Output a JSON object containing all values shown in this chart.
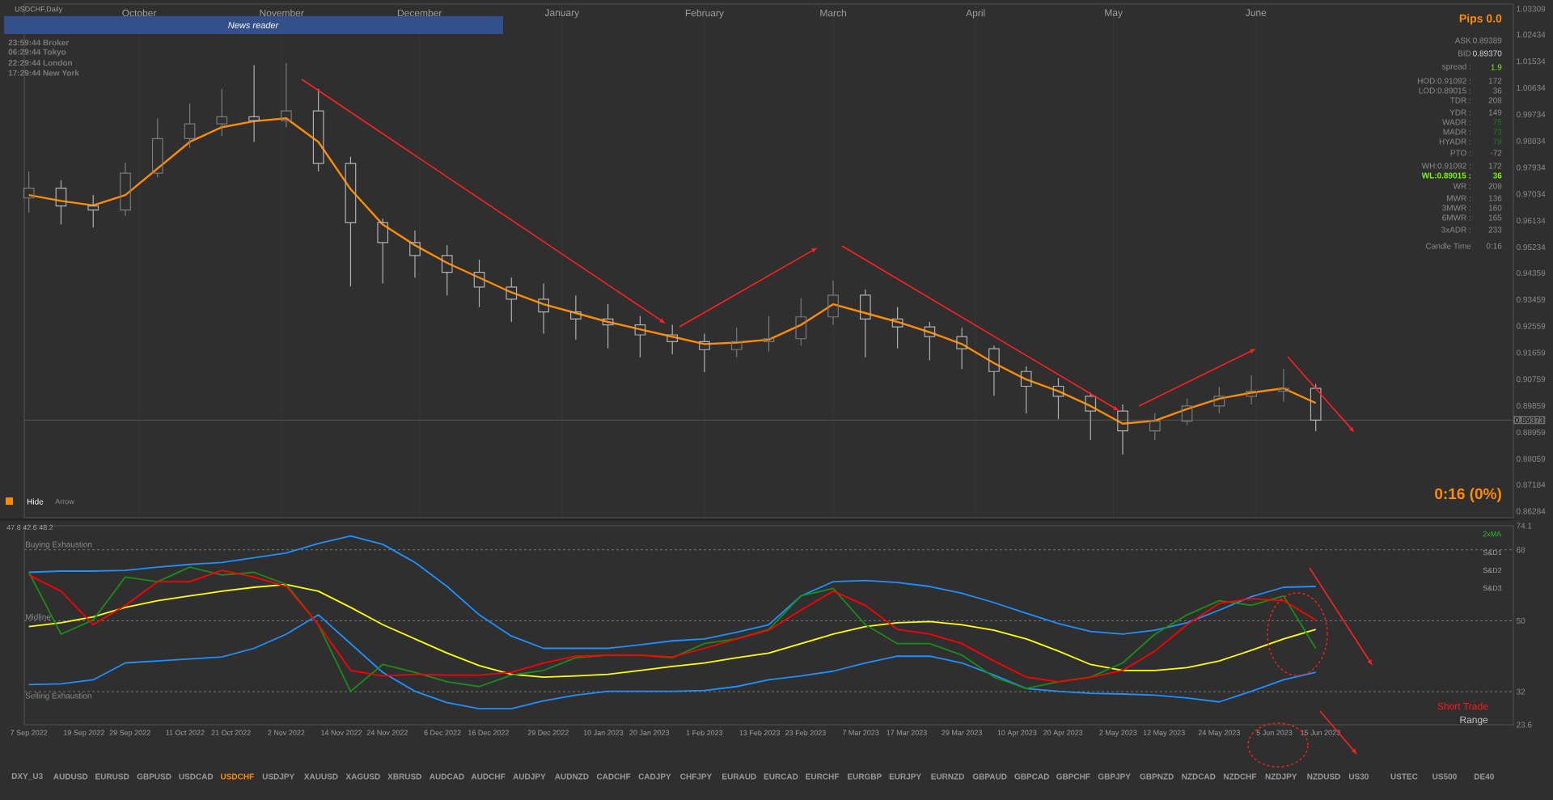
{
  "chart_data": [
    {
      "type": "candlestick",
      "title": "USDCHF,Daily",
      "x": [
        "2022-09-07",
        "2022-09-14",
        "2022-09-21",
        "2022-09-28",
        "2022-10-05",
        "2022-10-12",
        "2022-10-19",
        "2022-10-26",
        "2022-11-02",
        "2022-11-09",
        "2022-11-16",
        "2022-11-23",
        "2022-11-30",
        "2022-12-07",
        "2022-12-14",
        "2022-12-21",
        "2022-12-28",
        "2023-01-04",
        "2023-01-11",
        "2023-01-18",
        "2023-01-25",
        "2023-02-01",
        "2023-02-08",
        "2023-02-15",
        "2023-02-22",
        "2023-03-01",
        "2023-03-08",
        "2023-03-15",
        "2023-03-22",
        "2023-03-29",
        "2023-04-05",
        "2023-04-12",
        "2023-04-19",
        "2023-04-26",
        "2023-05-03",
        "2023-05-10",
        "2023-05-17",
        "2023-05-24",
        "2023-05-31",
        "2023-06-07",
        "2023-06-14"
      ],
      "ohlc": [
        [
          0.969,
          0.978,
          0.964,
          0.9723
        ],
        [
          0.9723,
          0.975,
          0.96,
          0.9663
        ],
        [
          0.9663,
          0.97,
          0.959,
          0.9649
        ],
        [
          0.9649,
          0.981,
          0.963,
          0.9774
        ],
        [
          0.9774,
          0.996,
          0.976,
          0.9891
        ],
        [
          0.9891,
          1.001,
          0.986,
          0.9941
        ],
        [
          0.9941,
          1.006,
          0.99,
          0.9965
        ],
        [
          0.9965,
          1.014,
          0.988,
          0.9952
        ],
        [
          0.9952,
          1.0148,
          0.993,
          0.9985
        ],
        [
          0.9985,
          1.006,
          0.978,
          0.9807
        ],
        [
          0.9807,
          0.983,
          0.939,
          0.9606
        ],
        [
          0.9606,
          0.962,
          0.94,
          0.9539
        ],
        [
          0.9539,
          0.958,
          0.942,
          0.9495
        ],
        [
          0.9495,
          0.953,
          0.936,
          0.9438
        ],
        [
          0.9438,
          0.948,
          0.932,
          0.9388
        ],
        [
          0.9388,
          0.942,
          0.927,
          0.9347
        ],
        [
          0.9347,
          0.94,
          0.923,
          0.9304
        ],
        [
          0.9304,
          0.936,
          0.921,
          0.928
        ],
        [
          0.928,
          0.933,
          0.918,
          0.926
        ],
        [
          0.926,
          0.929,
          0.915,
          0.9226
        ],
        [
          0.9226,
          0.926,
          0.916,
          0.9203
        ],
        [
          0.9203,
          0.923,
          0.91,
          0.9176
        ],
        [
          0.9176,
          0.925,
          0.915,
          0.9203
        ],
        [
          0.9203,
          0.929,
          0.917,
          0.9213
        ],
        [
          0.9213,
          0.935,
          0.919,
          0.9287
        ],
        [
          0.9287,
          0.941,
          0.926,
          0.9361
        ],
        [
          0.9361,
          0.938,
          0.915,
          0.928
        ],
        [
          0.928,
          0.932,
          0.918,
          0.9253
        ],
        [
          0.9253,
          0.927,
          0.914,
          0.922
        ],
        [
          0.922,
          0.925,
          0.911,
          0.9179
        ],
        [
          0.9179,
          0.919,
          0.902,
          0.9102
        ],
        [
          0.9102,
          0.912,
          0.896,
          0.9052
        ],
        [
          0.9052,
          0.908,
          0.894,
          0.9018
        ],
        [
          0.9018,
          0.903,
          0.887,
          0.8968
        ],
        [
          0.8968,
          0.899,
          0.882,
          0.8901
        ],
        [
          0.8901,
          0.896,
          0.887,
          0.8934
        ],
        [
          0.8934,
          0.901,
          0.892,
          0.8985
        ],
        [
          0.8985,
          0.905,
          0.896,
          0.9018
        ],
        [
          0.9018,
          0.909,
          0.899,
          0.9035
        ],
        [
          0.9035,
          0.911,
          0.9,
          0.9045
        ],
        [
          0.9045,
          0.906,
          0.89,
          0.8937
        ]
      ],
      "series": [
        {
          "type": "line",
          "color": "#ff8c00",
          "values": [
            0.97,
            0.968,
            0.9665,
            0.97,
            0.979,
            0.988,
            0.993,
            0.995,
            0.996,
            0.988,
            0.972,
            0.96,
            0.953,
            0.947,
            0.942,
            0.937,
            0.933,
            0.93,
            0.927,
            0.9245,
            0.922,
            0.9195,
            0.92,
            0.921,
            0.926,
            0.933,
            0.93,
            0.927,
            0.9235,
            0.9195,
            0.913,
            0.9075,
            0.9035,
            0.8985,
            0.8925,
            0.8935,
            0.8975,
            0.901,
            0.903,
            0.9045,
            0.8995
          ]
        }
      ],
      "xlim": [
        "2022-09-06",
        "2023-07-27"
      ],
      "ylim": [
        0.86065,
        1.03473
      ],
      "xticks": [
        {
          "value": "2022-10-01",
          "label": "October"
        },
        {
          "value": "2022-11-01",
          "label": "November"
        },
        {
          "value": "2022-12-01",
          "label": "December"
        },
        {
          "value": "2023-01-01",
          "label": "January"
        },
        {
          "value": "2023-02-01",
          "label": "February"
        },
        {
          "value": "2023-03-01",
          "label": "March"
        },
        {
          "value": "2023-04-01",
          "label": "April"
        },
        {
          "value": "2023-05-01",
          "label": "May"
        },
        {
          "value": "2023-06-01",
          "label": "June"
        }
      ],
      "yticks": [
        1.03309,
        1.02434,
        1.01534,
        1.00634,
        0.99734,
        0.98834,
        0.97934,
        0.97034,
        0.96134,
        0.95234,
        0.94359,
        0.93459,
        0.92559,
        0.91659,
        0.90759,
        0.89859,
        0.88959,
        0.88059,
        0.87184,
        0.86284
      ],
      "grid": "x",
      "ref_lines": [
        {
          "axis": "y",
          "value": 0.89373,
          "label": "0.89373",
          "color": "#6e6e6e",
          "line_style": "solid"
        }
      ],
      "annotations": [
        "News reader",
        "23:59:44 Broker",
        "06:29:44 Tokyo",
        "22:29:44 London",
        "17:29:44 New York",
        "Hide",
        "Arrow",
        "Pips 0.0",
        "0:16 (0%)",
        "ASK",
        "0.89389",
        "BID",
        "0.89370",
        "spread :",
        "1.9",
        "HOD:0.91092 :",
        "172",
        "LOD:0.89015 :",
        "36",
        "TDR :",
        "208",
        "YDR :",
        "149",
        "WADR :",
        "75",
        "MADR :",
        "73",
        "HYADR :",
        "79",
        "PTO :",
        "-72",
        "WH:0.91092 :",
        "172",
        "WL:0.89015 :",
        "36",
        "WR :",
        "208",
        "MWR :",
        "136",
        "3MWR :",
        "160",
        "6MWR :",
        "165",
        "3xADR :",
        "233",
        "Candle Time",
        "0:16"
      ]
    },
    {
      "type": "line",
      "x": [
        "2022-09-07",
        "2022-09-14",
        "2022-09-21",
        "2022-09-28",
        "2022-10-05",
        "2022-10-12",
        "2022-10-19",
        "2022-10-26",
        "2022-11-02",
        "2022-11-09",
        "2022-11-16",
        "2022-11-23",
        "2022-11-30",
        "2022-12-07",
        "2022-12-14",
        "2022-12-21",
        "2022-12-28",
        "2023-01-04",
        "2023-01-11",
        "2023-01-18",
        "2023-01-25",
        "2023-02-01",
        "2023-02-08",
        "2023-02-15",
        "2023-02-22",
        "2023-03-01",
        "2023-03-08",
        "2023-03-15",
        "2023-03-22",
        "2023-03-29",
        "2023-04-05",
        "2023-04-12",
        "2023-04-19",
        "2023-04-26",
        "2023-05-03",
        "2023-05-10",
        "2023-05-17",
        "2023-05-24",
        "2023-05-31",
        "2023-06-07",
        "2023-06-14"
      ],
      "series": [
        {
          "color": "#1e90ff",
          "values": [
            62.3,
            62.6,
            62.6,
            62.8,
            63.6,
            64.3,
            64.8,
            66.0,
            67.2,
            69.6,
            71.5,
            69.4,
            64.8,
            58.7,
            51.5,
            46.1,
            43.0,
            43.0,
            43.0,
            43.9,
            44.9,
            45.4,
            47.1,
            49.0,
            56.3,
            59.9,
            60.2,
            59.7,
            58.7,
            57.0,
            54.6,
            51.9,
            49.3,
            47.3,
            46.6,
            47.6,
            49.5,
            52.7,
            56.1,
            58.5,
            58.7
          ]
        },
        {
          "color": "#1e90ff",
          "values": [
            33.8,
            34.0,
            35.0,
            39.3,
            39.8,
            40.3,
            40.8,
            43.0,
            46.6,
            51.5,
            44.2,
            36.9,
            32.1,
            29.2,
            27.7,
            27.7,
            29.7,
            31.1,
            32.1,
            32.1,
            32.1,
            32.3,
            33.3,
            35.0,
            36.0,
            37.2,
            39.3,
            41.0,
            41.0,
            39.3,
            36.2,
            32.8,
            32.1,
            31.6,
            31.4,
            31.1,
            30.4,
            29.4,
            32.1,
            35.0,
            36.9
          ]
        },
        {
          "color": "#ffff00",
          "values": [
            48.5,
            49.5,
            51.0,
            53.4,
            55.1,
            56.3,
            57.5,
            58.5,
            59.2,
            57.5,
            53.4,
            49.0,
            45.4,
            41.8,
            38.6,
            36.4,
            35.7,
            36.0,
            36.4,
            37.4,
            38.4,
            39.3,
            40.6,
            41.8,
            44.2,
            46.6,
            48.5,
            49.5,
            49.8,
            49.0,
            47.6,
            45.4,
            42.3,
            38.9,
            37.4,
            37.4,
            38.1,
            39.8,
            42.5,
            45.4,
            47.8
          ]
        },
        {
          "color": "#1a8c1a",
          "values": [
            62.3,
            46.6,
            50.2,
            61.1,
            59.9,
            63.6,
            61.6,
            62.3,
            59.2,
            49.0,
            32.1,
            38.9,
            36.9,
            34.5,
            33.3,
            36.2,
            37.4,
            40.6,
            41.3,
            41.3,
            40.6,
            44.2,
            45.4,
            47.8,
            56.3,
            58.2,
            49.0,
            44.2,
            44.2,
            41.3,
            35.7,
            32.8,
            34.5,
            35.7,
            39.3,
            46.6,
            51.5,
            55.1,
            53.9,
            56.3,
            43.0
          ]
        },
        {
          "color": "#ff0000",
          "values": [
            61.6,
            57.5,
            49.0,
            53.9,
            59.9,
            59.9,
            62.8,
            61.1,
            58.7,
            49.0,
            37.4,
            36.0,
            36.4,
            36.2,
            36.2,
            36.9,
            39.3,
            41.0,
            41.3,
            41.3,
            40.8,
            43.0,
            45.4,
            47.6,
            52.7,
            57.5,
            53.9,
            47.8,
            46.6,
            44.2,
            39.8,
            35.7,
            34.5,
            35.7,
            37.4,
            42.3,
            49.0,
            54.4,
            55.6,
            55.1,
            50.2
          ]
        }
      ],
      "xlim": [
        "2022-09-06",
        "2023-07-27"
      ],
      "ylim": [
        23.6,
        74.1
      ],
      "xticks": [
        {
          "value": "2022-09-07",
          "label": "7 Sep 2022"
        },
        {
          "value": "2022-09-19",
          "label": "19 Sep 2022"
        },
        {
          "value": "2022-09-29",
          "label": "29 Sep 2022"
        },
        {
          "value": "2022-10-11",
          "label": "11 Oct 2022"
        },
        {
          "value": "2022-10-21",
          "label": "21 Oct 2022"
        },
        {
          "value": "2022-11-02",
          "label": "2 Nov 2022"
        },
        {
          "value": "2022-11-14",
          "label": "14 Nov 2022"
        },
        {
          "value": "2022-11-24",
          "label": "24 Nov 2022"
        },
        {
          "value": "2022-12-06",
          "label": "6 Dec 2022"
        },
        {
          "value": "2022-12-16",
          "label": "16 Dec 2022"
        },
        {
          "value": "2022-12-29",
          "label": "29 Dec 2022"
        },
        {
          "value": "2023-01-10",
          "label": "10 Jan 2023"
        },
        {
          "value": "2023-01-20",
          "label": "20 Jan 2023"
        },
        {
          "value": "2023-02-01",
          "label": "1 Feb 2023"
        },
        {
          "value": "2023-02-13",
          "label": "13 Feb 2023"
        },
        {
          "value": "2023-02-23",
          "label": "23 Feb 2023"
        },
        {
          "value": "2023-03-07",
          "label": "7 Mar 2023"
        },
        {
          "value": "2023-03-17",
          "label": "17 Mar 2023"
        },
        {
          "value": "2023-03-29",
          "label": "29 Mar 2023"
        },
        {
          "value": "2023-04-10",
          "label": "10 Apr 2023"
        },
        {
          "value": "2023-04-20",
          "label": "20 Apr 2023"
        },
        {
          "value": "2023-05-02",
          "label": "2 May 2023"
        },
        {
          "value": "2023-05-12",
          "label": "12 May 2023"
        },
        {
          "value": "2023-05-24",
          "label": "24 May 2023"
        },
        {
          "value": "2023-06-05",
          "label": "5 Jun 2023"
        },
        {
          "value": "2023-06-15",
          "label": "15 Jun 2023"
        }
      ],
      "yticks": [
        74.1,
        68,
        50,
        32,
        23.6
      ],
      "ref_lines": [
        {
          "axis": "y",
          "value": 68,
          "label": "Buying Exhaustion",
          "line_style": "dashed",
          "color": "#8c8c8c"
        },
        {
          "axis": "y",
          "value": 50,
          "label": "Midline",
          "line_style": "dashed",
          "color": "#8c8c8c"
        },
        {
          "axis": "y",
          "value": 32,
          "label": "Selling Exhaustion",
          "line_style": "dashed",
          "color": "#8c8c8c"
        }
      ],
      "annotations": [
        "47.8 42.6 48.2",
        "2xMA",
        "S&D1",
        "S&D2",
        "S&D3",
        "Short Trade",
        "Range",
        "DXY_U3",
        "AUDUSD",
        "EURUSD",
        "GBPUSD",
        "USDCAD",
        "USDCHF",
        "USDJPY",
        "XAUUSD",
        "XAGUSD",
        "XBRUSD",
        "AUDCAD",
        "AUDCHF",
        "AUDJPY",
        "AUDNZD",
        "CADCHF",
        "CADJPY",
        "CHFJPY",
        "EURAUD",
        "EURCAD",
        "EURCHF",
        "EURGBP",
        "EURJPY",
        "EURNZD",
        "GBPAUD",
        "GBPCAD",
        "GBPCHF",
        "GBPJPY",
        "GBPNZD",
        "NZDCAD",
        "NZDCHF",
        "NZDJPY",
        "NZDUSD",
        "US30",
        "USTEC",
        "US500",
        "DE40"
      ]
    }
  ]
}
